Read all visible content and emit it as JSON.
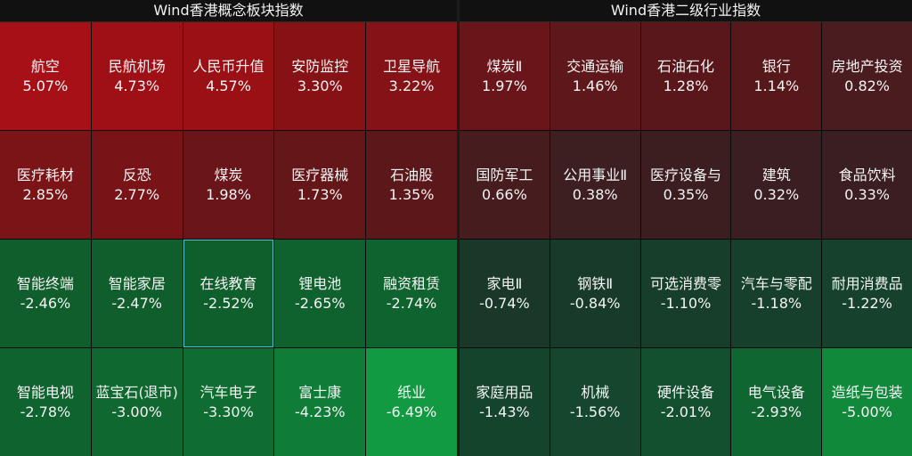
{
  "left_panel": {
    "title": "Wind香港概念板块指数",
    "cells": [
      {
        "name": "航空",
        "pct": "5.07%",
        "color": "#a61016"
      },
      {
        "name": "民航机场",
        "pct": "4.73%",
        "color": "#9e1016"
      },
      {
        "name": "人民币升值",
        "pct": "4.57%",
        "color": "#9a1015"
      },
      {
        "name": "安防监控",
        "pct": "3.30%",
        "color": "#861216"
      },
      {
        "name": "卫星导航",
        "pct": "3.22%",
        "color": "#841216"
      },
      {
        "name": "医疗耗材",
        "pct": "2.85%",
        "color": "#7a1417"
      },
      {
        "name": "反恐",
        "pct": "2.77%",
        "color": "#781417"
      },
      {
        "name": "煤炭",
        "pct": "1.98%",
        "color": "#691519"
      },
      {
        "name": "医疗器械",
        "pct": "1.73%",
        "color": "#641619"
      },
      {
        "name": "石油股",
        "pct": "1.35%",
        "color": "#5c171a"
      },
      {
        "name": "智能终端",
        "pct": "-2.46%",
        "color": "#0f5e2c"
      },
      {
        "name": "智能家居",
        "pct": "-2.47%",
        "color": "#0f5e2c"
      },
      {
        "name": "在线教育",
        "pct": "-2.52%",
        "color": "#0f5f2d",
        "selected": true
      },
      {
        "name": "锂电池",
        "pct": "-2.65%",
        "color": "#0f612d"
      },
      {
        "name": "融资租赁",
        "pct": "-2.74%",
        "color": "#0f632e"
      },
      {
        "name": "智能电视",
        "pct": "-2.78%",
        "color": "#0f632e"
      },
      {
        "name": "蓝宝石(退市)",
        "pct": "-3.00%",
        "color": "#0f6830"
      },
      {
        "name": "汽车电子",
        "pct": "-3.30%",
        "color": "#0f6d32"
      },
      {
        "name": "富士康",
        "pct": "-4.23%",
        "color": "#0f7d37"
      },
      {
        "name": "纸业",
        "pct": "-6.49%",
        "color": "#119a42"
      }
    ]
  },
  "right_panel": {
    "title": "Wind香港二级行业指数",
    "cells": [
      {
        "name": "煤炭Ⅱ",
        "pct": "1.97%",
        "color": "#69151a"
      },
      {
        "name": "交通运输",
        "pct": "1.46%",
        "color": "#5e171b"
      },
      {
        "name": "石油石化",
        "pct": "1.28%",
        "color": "#5a171b"
      },
      {
        "name": "银行",
        "pct": "1.14%",
        "color": "#57181c"
      },
      {
        "name": "房地产投资",
        "pct": "0.82%",
        "color": "#4a1c1f"
      },
      {
        "name": "国防军工",
        "pct": "0.66%",
        "color": "#461c1f"
      },
      {
        "name": "公用事业Ⅱ",
        "pct": "0.38%",
        "color": "#3d1e21"
      },
      {
        "name": "医疗设备与",
        "pct": "0.35%",
        "color": "#3c1e21"
      },
      {
        "name": "建筑",
        "pct": "0.32%",
        "color": "#3b1e21"
      },
      {
        "name": "食品饮料",
        "pct": "0.33%",
        "color": "#3b1e21"
      },
      {
        "name": "家电Ⅱ",
        "pct": "-0.74%",
        "color": "#19382a"
      },
      {
        "name": "钢铁Ⅱ",
        "pct": "-0.84%",
        "color": "#183a2a"
      },
      {
        "name": "可选消费零",
        "pct": "-1.10%",
        "color": "#173e2b"
      },
      {
        "name": "汽车与零配",
        "pct": "-1.18%",
        "color": "#16402b"
      },
      {
        "name": "耐用消费品",
        "pct": "-1.22%",
        "color": "#16412c"
      },
      {
        "name": "家庭用品",
        "pct": "-1.43%",
        "color": "#15442c"
      },
      {
        "name": "机械",
        "pct": "-1.56%",
        "color": "#14472d"
      },
      {
        "name": "硬件设备",
        "pct": "-2.01%",
        "color": "#12502f"
      },
      {
        "name": "电气设备",
        "pct": "-2.93%",
        "color": "#0f6630"
      },
      {
        "name": "造纸与包装",
        "pct": "-5.00%",
        "color": "#10893b"
      }
    ]
  }
}
